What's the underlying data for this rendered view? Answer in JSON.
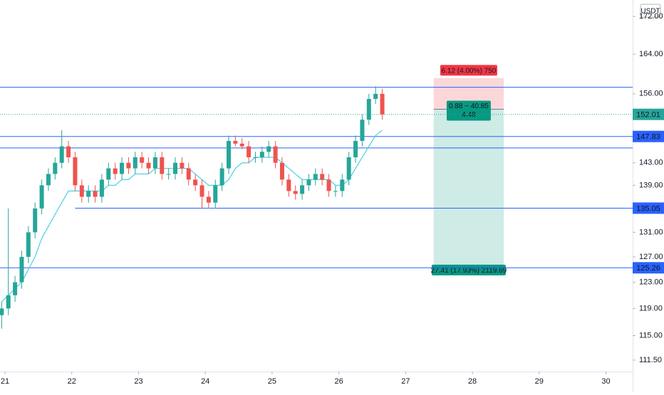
{
  "chart_data": {
    "type": "candlestick",
    "currency": "USDT",
    "log_scale": true,
    "up_color": "#26a69a",
    "down_color": "#ef5350",
    "xlim": [
      20.925,
      30.4
    ],
    "xticks": [
      21,
      22,
      23,
      24,
      25,
      26,
      27,
      28,
      29,
      30
    ],
    "ylim": [
      109.9,
      175.6
    ],
    "yticks": [
      {
        "value": 111.5,
        "label": "111.50"
      },
      {
        "value": 115,
        "label": "115.00"
      },
      {
        "value": 119,
        "label": "119.00"
      },
      {
        "value": 123,
        "label": "123.00"
      },
      {
        "value": 127,
        "label": "127.00"
      },
      {
        "value": 131,
        "label": "131.00"
      },
      {
        "value": 139,
        "label": "139.00"
      },
      {
        "value": 143,
        "label": "143.00"
      },
      {
        "value": 156,
        "label": "156.00"
      },
      {
        "value": 164,
        "label": "164.00"
      },
      {
        "value": 172,
        "label": "172.00"
      }
    ],
    "x": [
      20.95,
      21.05,
      21.15,
      21.25,
      21.35,
      21.45,
      21.55,
      21.65,
      21.75,
      21.85,
      21.95,
      22.05,
      22.15,
      22.25,
      22.35,
      22.45,
      22.55,
      22.65,
      22.75,
      22.85,
      22.95,
      23.05,
      23.15,
      23.25,
      23.35,
      23.45,
      23.55,
      23.65,
      23.75,
      23.85,
      23.95,
      24.05,
      24.15,
      24.25,
      24.35,
      24.45,
      24.55,
      24.65,
      24.75,
      24.85,
      24.95,
      25.05,
      25.15,
      25.25,
      25.35,
      25.45,
      25.55,
      25.65,
      25.75,
      25.85,
      25.95,
      26.05,
      26.15,
      26.25,
      26.35,
      26.45,
      26.55,
      26.65
    ],
    "open": [
      118,
      119,
      121,
      123,
      127,
      131,
      135,
      139,
      141,
      143,
      146,
      144,
      139,
      137,
      138,
      137,
      140,
      142,
      141,
      143,
      142,
      144,
      143,
      142,
      144,
      141,
      141,
      143,
      142,
      140,
      139,
      137,
      136,
      139,
      142,
      147,
      146.5,
      146,
      144,
      144,
      145,
      146,
      143,
      140,
      138,
      137.5,
      139,
      140,
      141,
      140,
      138,
      138,
      140,
      144,
      147,
      151,
      155,
      156
    ],
    "high": [
      120,
      135,
      124,
      128,
      132,
      136,
      140,
      142,
      144,
      149,
      147,
      145,
      140,
      139,
      139,
      141,
      143,
      143,
      144,
      144,
      145,
      145,
      144,
      145,
      145,
      142,
      144,
      144,
      143,
      141,
      140,
      138,
      140,
      143,
      148,
      148,
      147.5,
      147,
      145,
      146,
      147,
      147,
      144,
      141,
      139,
      140,
      141,
      142,
      142,
      141,
      139,
      141,
      145,
      148,
      152,
      156,
      157.5,
      157
    ],
    "low": [
      116,
      118,
      120,
      122,
      126,
      130,
      134,
      138,
      140,
      142,
      143,
      138,
      136,
      136,
      136,
      136,
      139,
      140,
      140,
      141,
      141,
      142,
      141,
      141,
      140,
      140,
      140,
      141,
      139,
      138,
      135,
      135,
      135,
      138,
      141,
      146,
      145.5,
      143,
      143,
      143,
      144,
      142,
      139,
      137,
      136.5,
      136.5,
      138,
      139,
      139,
      137,
      137,
      137,
      139,
      143,
      146,
      150,
      154,
      151
    ],
    "close": [
      119,
      121,
      123,
      127,
      131,
      135,
      139,
      141,
      143,
      146,
      144,
      139,
      137,
      138,
      137,
      140,
      142,
      141,
      143,
      142,
      144,
      143,
      142,
      144,
      141,
      141,
      143,
      142,
      140,
      139,
      137,
      136,
      139,
      142,
      147,
      146.5,
      146,
      144,
      144,
      145,
      146,
      143,
      140,
      138,
      137.5,
      139,
      140,
      141,
      140,
      138,
      138,
      140,
      144,
      147,
      151,
      155,
      156,
      152
    ],
    "ema": {
      "color": "#4dd0e1",
      "values": [
        120,
        121,
        122,
        123,
        125,
        127,
        130,
        132,
        134,
        136,
        138,
        138,
        138,
        138,
        138,
        138,
        139,
        139,
        140,
        140,
        141,
        141,
        141,
        142,
        142,
        142,
        142,
        142,
        142,
        141,
        140,
        139,
        139,
        139,
        140,
        142,
        143,
        143,
        144,
        144,
        144,
        144,
        143,
        142,
        141,
        140,
        140,
        140,
        140,
        140,
        139,
        139,
        140,
        142,
        144,
        146,
        148,
        149
      ]
    },
    "current_price": 152.01,
    "levels": {
      "color": "#2962ff",
      "lines": [
        {
          "price": 157.3
        },
        {
          "price": 147.83,
          "labeled": true
        },
        {
          "price": 145.7
        },
        {
          "price": 135.05,
          "labeled": true,
          "from": 22.05
        },
        {
          "price": 125.26,
          "labeled": true
        }
      ]
    },
    "position": {
      "from": 27.42,
      "to": 28.47,
      "entry": 153,
      "stop": 159.12,
      "target": 125.59,
      "stop_label": "6.12 (4.00%) 750",
      "entry_label": "0.88 ~ 40.85",
      "entry_sublabel": "4.48",
      "target_label": "27.41 (17.93%) 2119.69"
    }
  }
}
